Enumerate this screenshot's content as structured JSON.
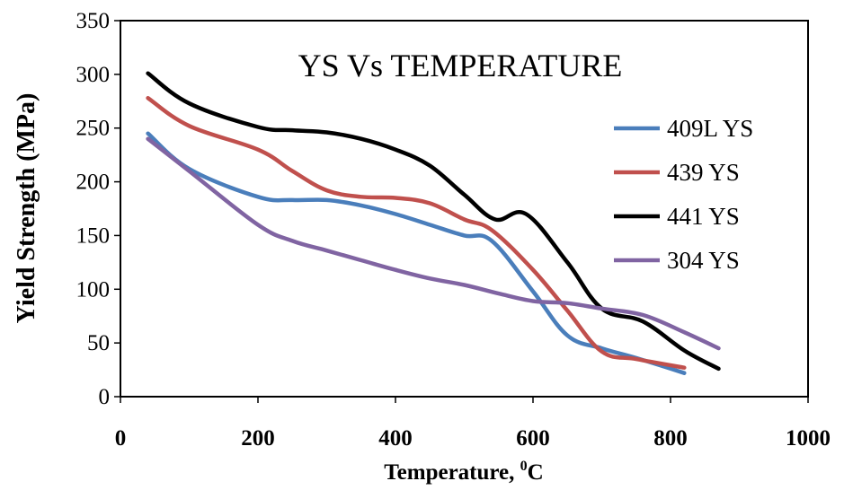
{
  "chart_data": {
    "type": "line",
    "title": "YS Vs TEMPERATURE",
    "xlabel": "Temperature, ",
    "xlabel_superscript": "0",
    "xlabel_unit": "C",
    "ylabel": "Yield Strength (MPa)",
    "xlim": [
      0,
      1000
    ],
    "ylim": [
      0,
      350
    ],
    "xticks": [
      "0",
      "200",
      "400",
      "600",
      "800",
      "1000"
    ],
    "yticks": [
      "0",
      "50",
      "100",
      "150",
      "200",
      "250",
      "300",
      "350"
    ],
    "grid": false,
    "legend_position": "right",
    "series": [
      {
        "name": "409L YS",
        "color": "#4a7ebb",
        "x": [
          40,
          100,
          200,
          250,
          300,
          350,
          400,
          450,
          500,
          540,
          600,
          650,
          700,
          750,
          820
        ],
        "y": [
          245,
          212,
          186,
          183,
          183,
          178,
          170,
          160,
          150,
          145,
          98,
          57,
          45,
          36,
          22
        ]
      },
      {
        "name": "439 YS",
        "color": "#c0504d",
        "x": [
          40,
          100,
          200,
          250,
          300,
          350,
          400,
          450,
          500,
          540,
          600,
          650,
          700,
          750,
          820
        ],
        "y": [
          278,
          252,
          230,
          210,
          192,
          186,
          185,
          180,
          165,
          155,
          118,
          80,
          42,
          35,
          27
        ]
      },
      {
        "name": "441 YS",
        "color": "#000000",
        "x": [
          40,
          100,
          200,
          250,
          300,
          350,
          400,
          450,
          500,
          545,
          590,
          650,
          700,
          760,
          820,
          870
        ],
        "y": [
          301,
          273,
          251,
          248,
          246,
          240,
          230,
          215,
          188,
          165,
          170,
          125,
          82,
          70,
          43,
          26
        ]
      },
      {
        "name": "304 YS",
        "color": "#8064a2",
        "x": [
          40,
          100,
          200,
          250,
          300,
          350,
          400,
          450,
          500,
          550,
          600,
          650,
          700,
          760,
          820,
          870
        ],
        "y": [
          240,
          210,
          160,
          145,
          136,
          127,
          118,
          110,
          104,
          96,
          89,
          87,
          82,
          76,
          60,
          45
        ]
      }
    ]
  }
}
